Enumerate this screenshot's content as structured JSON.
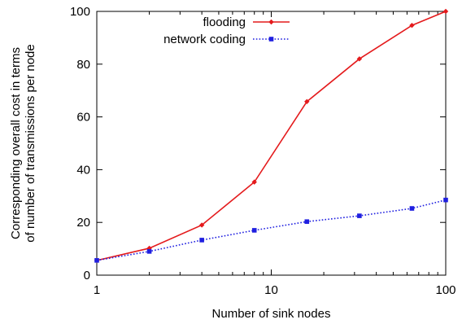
{
  "chart_data": {
    "type": "line",
    "xlabel": "Number of sink nodes",
    "ylabel_lines": [
      "Corresponding overall cost in terms",
      "of number of transmissions per node"
    ],
    "x_scale": "log",
    "xlim": [
      1,
      100
    ],
    "ylim": [
      0,
      100
    ],
    "x_ticks": [
      1,
      10,
      100
    ],
    "x_tick_labels": [
      "1",
      "10",
      "100"
    ],
    "y_ticks": [
      0,
      20,
      40,
      60,
      80,
      100
    ],
    "y_tick_labels": [
      "0",
      "20",
      "40",
      "60",
      "80",
      "100"
    ],
    "legend_position": "top-right",
    "series": [
      {
        "name": "flooding",
        "color": "#e41a1c",
        "line_style": "solid",
        "marker": "diamond",
        "x": [
          1,
          2,
          4,
          8,
          16,
          32,
          64,
          100
        ],
        "y": [
          5.6,
          10.2,
          19,
          35.3,
          65.8,
          82,
          94.7,
          100
        ]
      },
      {
        "name": "network coding",
        "color": "#1f1fe0",
        "line_style": "dotted",
        "marker": "square",
        "x": [
          1,
          2,
          4,
          8,
          16,
          32,
          64,
          100
        ],
        "y": [
          5.6,
          9,
          13.3,
          17,
          20.3,
          22.5,
          25.3,
          28.5
        ]
      }
    ]
  }
}
